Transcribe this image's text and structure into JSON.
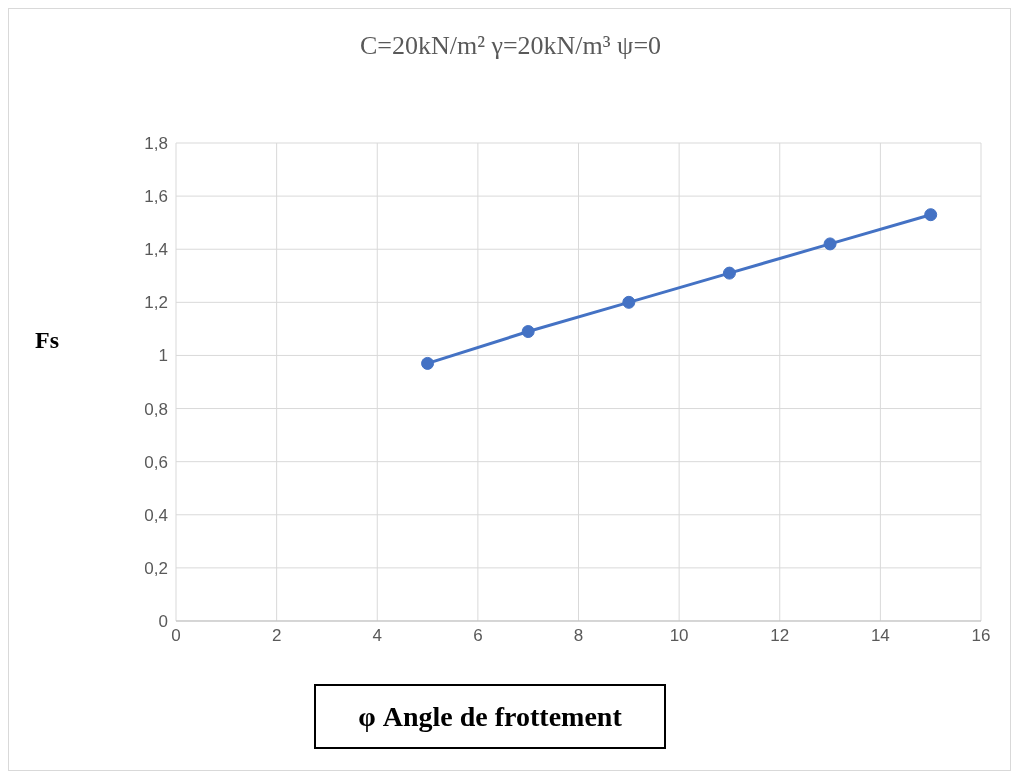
{
  "chart_data": {
    "type": "line",
    "title": "C=20kN/m² γ=20kN/m³  ψ=0",
    "xlabel": "φ Angle de frottement",
    "ylabel": "Fs",
    "x": [
      5,
      7,
      9,
      11,
      13,
      15
    ],
    "series": [
      {
        "color": "#4472c4",
        "values": [
          0.97,
          1.09,
          1.2,
          1.31,
          1.42,
          1.53
        ]
      }
    ],
    "xlim": [
      0,
      16
    ],
    "xticks": [
      0,
      2,
      4,
      6,
      8,
      10,
      12,
      14,
      16
    ],
    "ylim": [
      0,
      1.8
    ],
    "yticks": [
      0,
      {
        "value": 0.2,
        "label": "0,2"
      },
      {
        "value": 0.4,
        "label": "0,4"
      },
      {
        "value": 0.6,
        "label": "0,6"
      },
      {
        "value": 0.8,
        "label": "0,8"
      },
      1,
      {
        "value": 1.2,
        "label": "1,2"
      },
      {
        "value": 1.4,
        "label": "1,4"
      },
      {
        "value": 1.6,
        "label": "1,6"
      },
      {
        "value": 1.8,
        "label": "1,8"
      }
    ],
    "grid": true,
    "marker": "circle",
    "line_style": "solid"
  }
}
